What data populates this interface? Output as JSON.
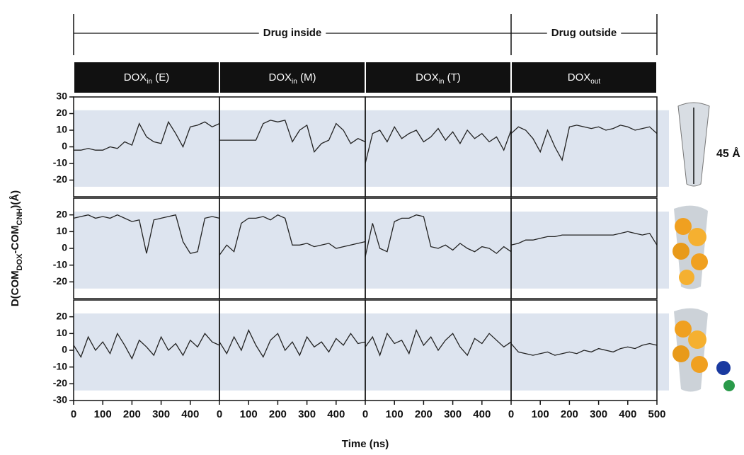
{
  "chart_data": {
    "type": "line",
    "groups": [
      {
        "label": "Drug inside",
        "span": [
          0,
          2
        ]
      },
      {
        "label": "Drug outside",
        "span": [
          3,
          3
        ]
      }
    ],
    "columns": [
      {
        "main": "DOX",
        "sub": "in",
        "tail": " (E)",
        "xticks": [
          0,
          100,
          200,
          300,
          400
        ]
      },
      {
        "main": "DOX",
        "sub": "in",
        "tail": " (M)",
        "xticks": [
          0,
          100,
          200,
          300,
          400
        ]
      },
      {
        "main": "DOX",
        "sub": "in",
        "tail": " (T)",
        "xticks": [
          0,
          100,
          200,
          300,
          400
        ]
      },
      {
        "main": "DOX",
        "sub": "out",
        "xticks": [
          0,
          100,
          200,
          300,
          400,
          500
        ]
      }
    ],
    "xlabel": "Time (ns)",
    "ylabel": [
      {
        "text": "D(COM"
      },
      {
        "sub": "DOX"
      },
      {
        "text": "-COM"
      },
      {
        "sub": "CNH"
      },
      {
        "text": ")(Å)"
      }
    ],
    "annotation": "45 Å",
    "xlim": [
      0,
      500
    ],
    "shade": [
      -24,
      22
    ],
    "color": "#222222",
    "x": [
      0,
      25,
      50,
      75,
      100,
      125,
      150,
      175,
      200,
      225,
      250,
      275,
      300,
      325,
      350,
      375,
      400,
      425,
      450,
      475,
      500
    ],
    "rows": [
      {
        "ylim": [
          -30,
          30
        ],
        "yticks": [
          -20,
          -10,
          0,
          10,
          20,
          30
        ],
        "series": [
          {
            "values": [
              -2,
              -2,
              -1,
              -2,
              -2,
              0,
              -1,
              3,
              1,
              14,
              6,
              3,
              2,
              15,
              8,
              0,
              12,
              13,
              15,
              12,
              14
            ]
          },
          {
            "values": [
              4,
              4,
              4,
              4,
              4,
              4,
              14,
              16,
              15,
              16,
              3,
              10,
              13,
              -3,
              2,
              4,
              14,
              10,
              2,
              5,
              3
            ]
          },
          {
            "values": [
              -10,
              8,
              10,
              3,
              12,
              5,
              8,
              10,
              3,
              6,
              11,
              4,
              9,
              2,
              10,
              5,
              8,
              3,
              6,
              -2,
              10
            ]
          },
          {
            "values": [
              8,
              12,
              10,
              5,
              -3,
              10,
              0,
              -8,
              12,
              13,
              12,
              11,
              12,
              10,
              11,
              13,
              12,
              10,
              11,
              12,
              8
            ]
          }
        ]
      },
      {
        "ylim": [
          -30,
          30
        ],
        "yticks": [
          -20,
          -10,
          0,
          10,
          20
        ],
        "series": [
          {
            "values": [
              18,
              19,
              20,
              18,
              19,
              18,
              20,
              18,
              16,
              17,
              -3,
              17,
              18,
              19,
              20,
              4,
              -3,
              -2,
              18,
              19,
              18
            ]
          },
          {
            "values": [
              -4,
              2,
              -2,
              15,
              18,
              18,
              19,
              17,
              20,
              18,
              2,
              2,
              3,
              1,
              2,
              3,
              0,
              1,
              2,
              3,
              4
            ]
          },
          {
            "values": [
              -5,
              15,
              0,
              -2,
              16,
              18,
              18,
              20,
              19,
              1,
              0,
              2,
              -1,
              3,
              0,
              -2,
              1,
              0,
              -3,
              1,
              -2
            ]
          },
          {
            "values": [
              2,
              3,
              5,
              5,
              6,
              7,
              7,
              8,
              8,
              8,
              8,
              8,
              8,
              8,
              8,
              9,
              10,
              9,
              8,
              9,
              2
            ]
          }
        ]
      },
      {
        "ylim": [
          -30,
          30
        ],
        "yticks": [
          -30,
          -20,
          -10,
          0,
          10,
          20
        ],
        "series": [
          {
            "values": [
              3,
              -4,
              8,
              0,
              5,
              -2,
              10,
              3,
              -5,
              6,
              2,
              -3,
              8,
              0,
              4,
              -3,
              6,
              2,
              10,
              5,
              3
            ]
          },
          {
            "values": [
              5,
              -2,
              8,
              0,
              12,
              3,
              -4,
              6,
              10,
              0,
              5,
              -3,
              8,
              2,
              5,
              -1,
              7,
              3,
              10,
              4,
              5
            ]
          },
          {
            "values": [
              2,
              8,
              -3,
              10,
              4,
              6,
              -2,
              12,
              3,
              8,
              0,
              6,
              10,
              2,
              -3,
              7,
              4,
              10,
              6,
              2,
              5
            ]
          },
          {
            "values": [
              4,
              -1,
              -2,
              -3,
              -2,
              -1,
              -3,
              -2,
              -1,
              -2,
              0,
              -1,
              1,
              0,
              -1,
              1,
              2,
              1,
              3,
              4,
              3
            ]
          }
        ]
      }
    ]
  }
}
